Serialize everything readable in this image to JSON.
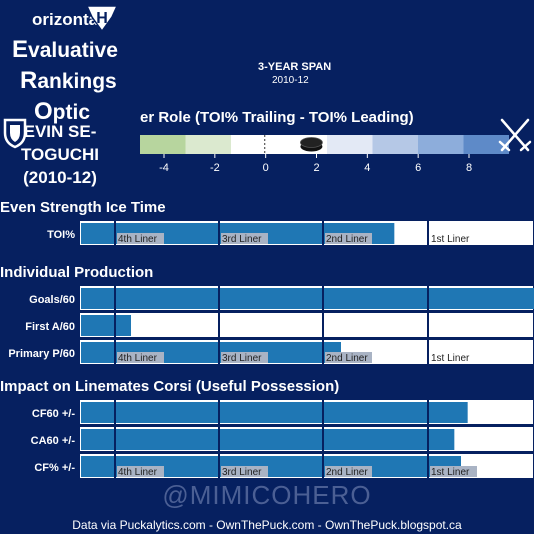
{
  "header": {
    "acronym_lines": [
      {
        "initial": "",
        "rest": "orizontal",
        "size": "small",
        "top": 10,
        "left": 32
      },
      {
        "initial": "E",
        "rest": "valuative",
        "size": "big",
        "top": 36,
        "left": 12
      },
      {
        "initial": "R",
        "rest": "ankings",
        "size": "big",
        "top": 67,
        "left": 20
      },
      {
        "initial": "O",
        "rest": "ptic",
        "size": "big",
        "top": 98,
        "left": 34
      }
    ],
    "player_lines": [
      "EVIN SE-",
      "TOGUCHI",
      "(2010-12)"
    ],
    "span_title": "3-YEAR SPAN",
    "span_years": "2010-12",
    "role_title": "er Role (TOI% Trailing - TOI% Leading)"
  },
  "colors": {
    "background": "#062060",
    "bar": "#1f77b4",
    "row_bg": "#ffffff",
    "liner_line": "#062060",
    "liner_label_bg": "#a9b3c4"
  },
  "role_scale": {
    "ticks": [
      "-4",
      "-2",
      "0",
      "2",
      "4",
      "6",
      "8"
    ],
    "colors": [
      "#b7d59e",
      "#dbe9cf",
      "#ffffff",
      "#ffffff",
      "#e3e9f5",
      "#b5c8e6",
      "#8daddb",
      "#5e8ac8"
    ],
    "marker_value": 1.8,
    "icon": "hockey-puck-icon"
  },
  "icons": {
    "logo": "helmet-logo-icon",
    "shield": "shield-icon",
    "swords": "crossed-swords-icon"
  },
  "chart_data": {
    "type": "bar",
    "orientation": "horizontal",
    "liner_labels": [
      "4th Liner",
      "3rd Liner",
      "2nd Liner",
      "1st Liner"
    ],
    "sections": [
      {
        "title": "Even Strength Ice Time",
        "rows": [
          {
            "label": "TOI%",
            "value": 0.94,
            "show_liner_labels": true
          }
        ]
      },
      {
        "title": "Individual Production",
        "rows": [
          {
            "label": "Goals/60",
            "value": 1.6,
            "show_liner_labels": false
          },
          {
            "label": "First A/60",
            "value": 0.15,
            "show_liner_labels": false
          },
          {
            "label": "Primary P/60",
            "value": 0.78,
            "show_liner_labels": true
          }
        ]
      },
      {
        "title": "Impact on Linemates Corsi (Useful Possession)",
        "rows": [
          {
            "label": "CF60 +/-",
            "value": 1.16,
            "show_liner_labels": false
          },
          {
            "label": "CA60 +/-",
            "value": 1.12,
            "show_liner_labels": false
          },
          {
            "label": "CF% +/-",
            "value": 1.14,
            "show_liner_labels": true
          }
        ]
      }
    ]
  },
  "watermark": "@MIMICOHERO",
  "footer": "Data via Puckalytics.com - OwnThePuck.com - OwnThePuck.blogspot.ca"
}
